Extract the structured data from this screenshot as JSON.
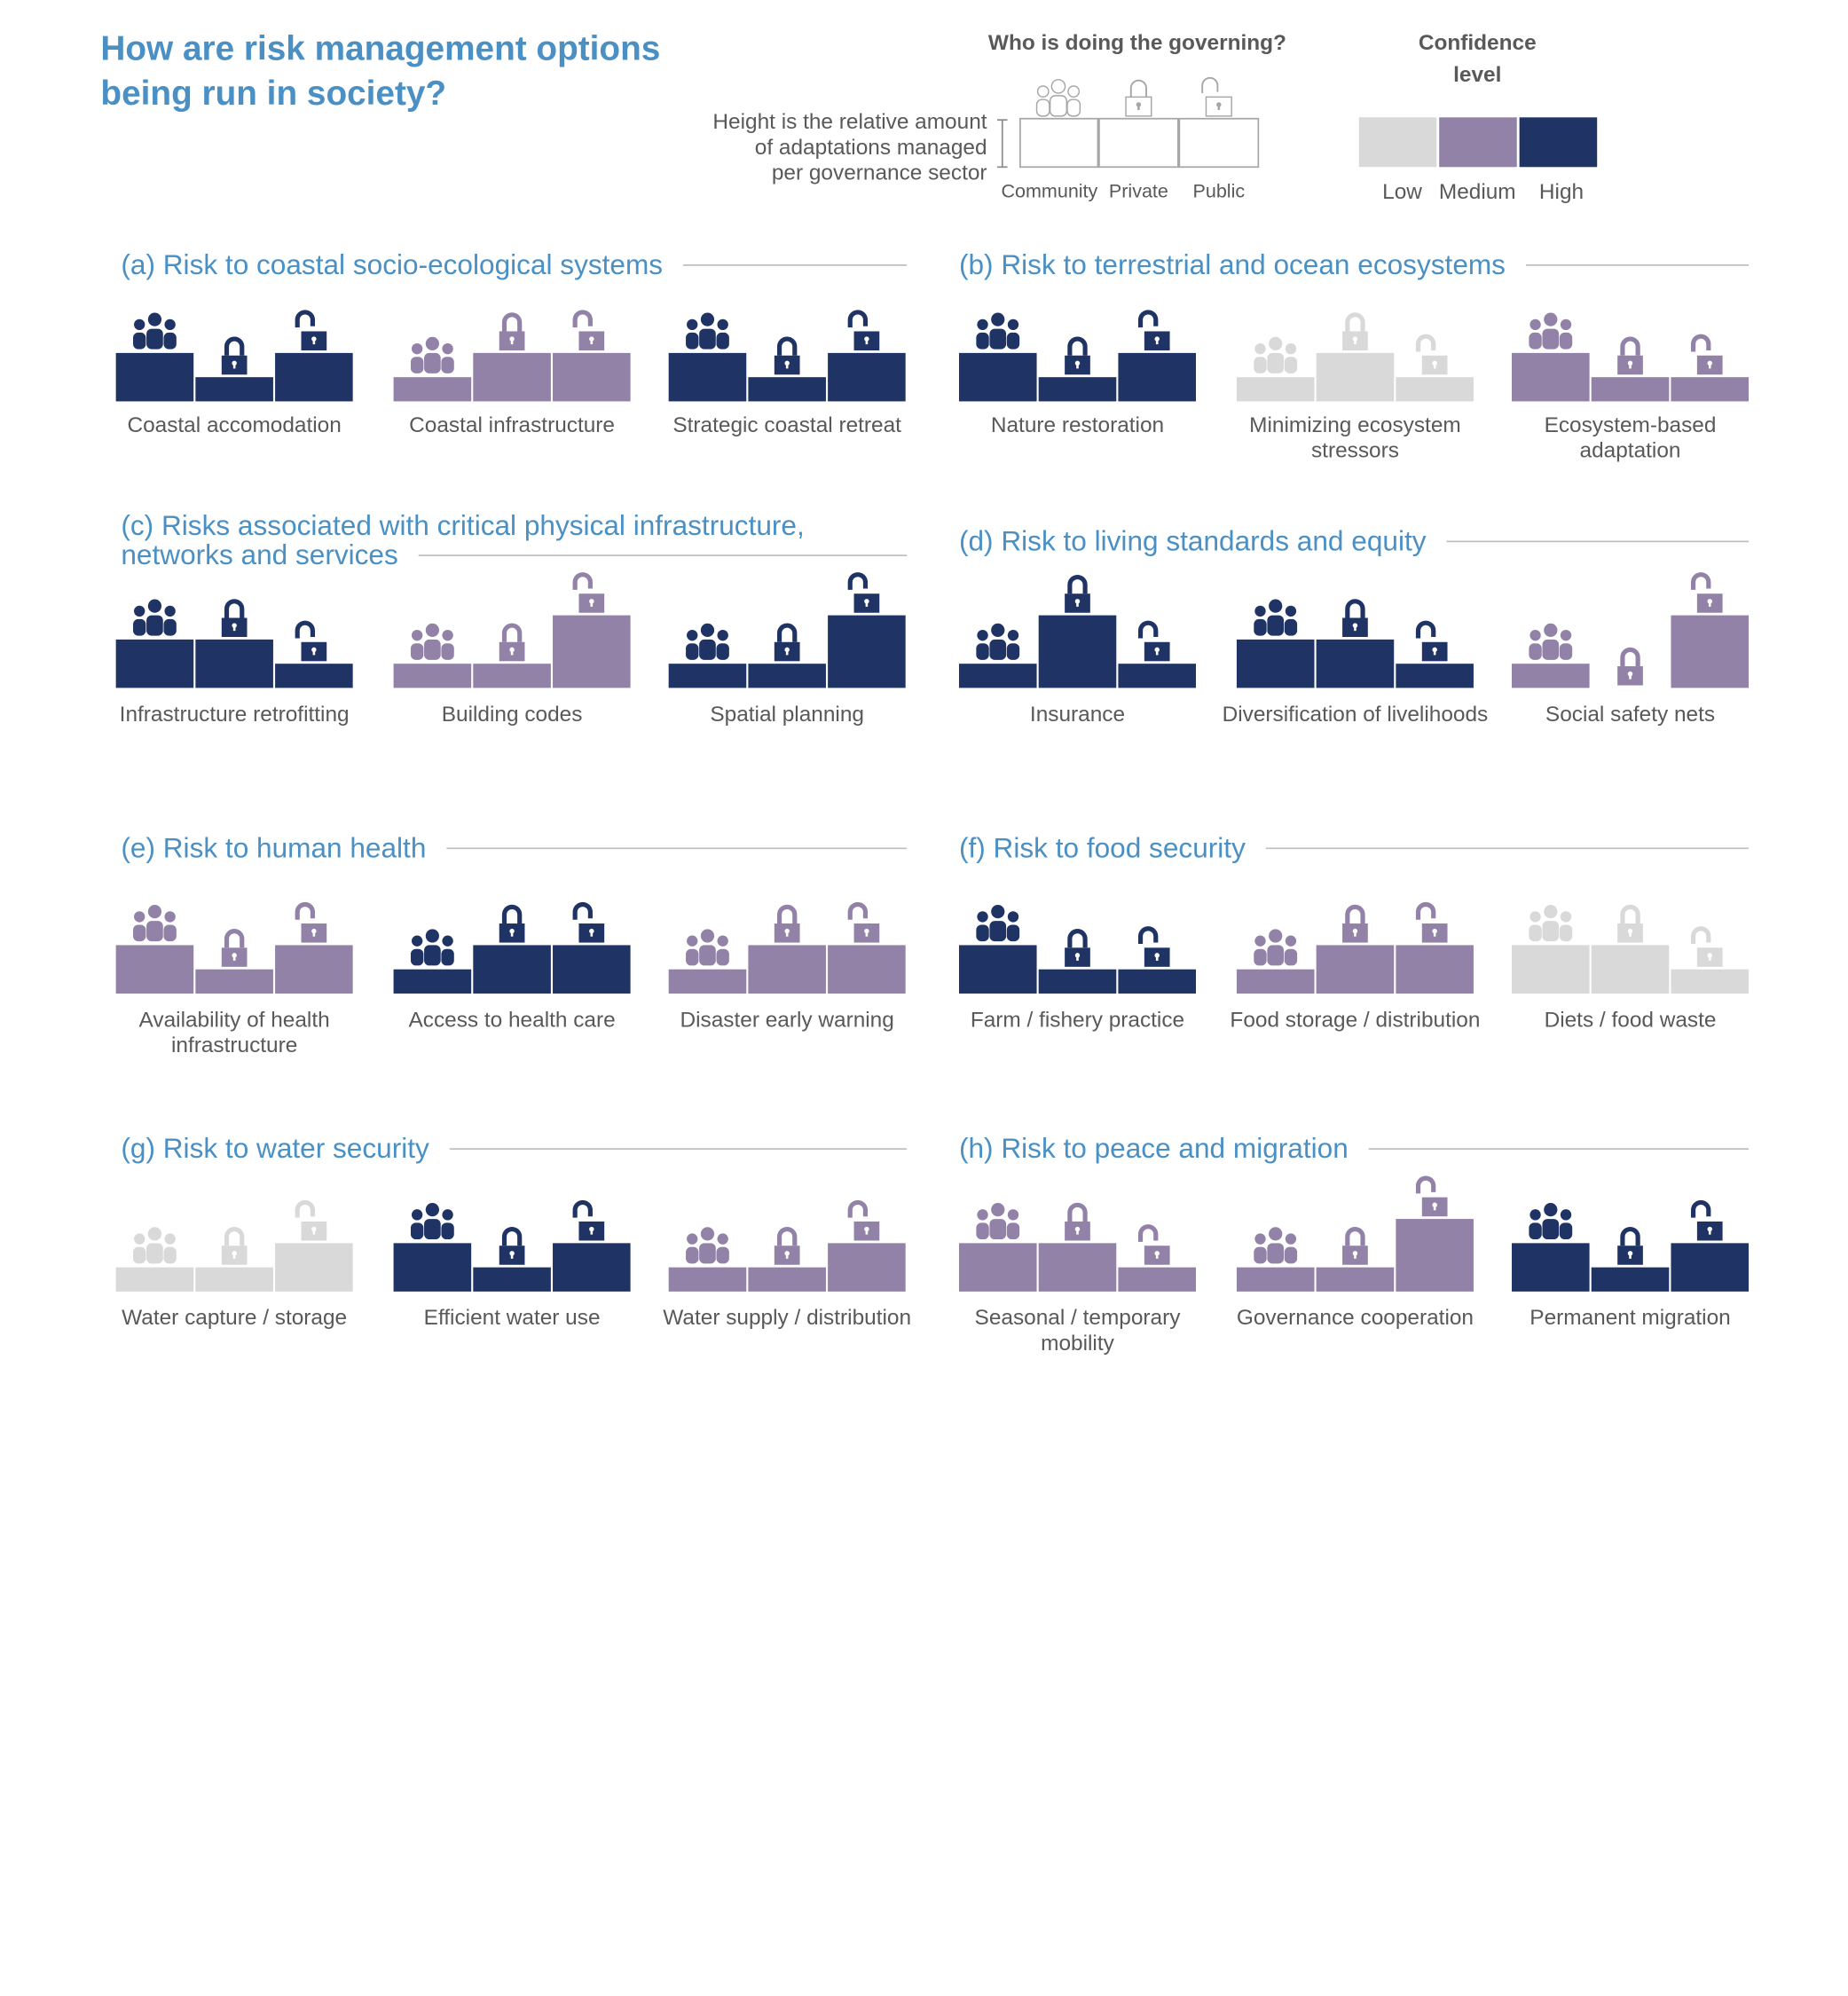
{
  "title": [
    "How are risk management options",
    "being run in society?"
  ],
  "legend": {
    "governing_title": "Who is doing the governing?",
    "height_note": [
      "Height is the relative amount",
      "of adaptations managed",
      "per governance sector"
    ],
    "sectors": [
      "Community",
      "Private",
      "Public"
    ],
    "confidence_title": [
      "Confidence",
      "level"
    ],
    "confidence_levels": [
      "Low",
      "Medium",
      "High"
    ]
  },
  "colors": {
    "low": "#d9d9d9",
    "medium": "#9282a8",
    "high": "#1f3464",
    "heading": "#4a90c4",
    "label": "#595959",
    "rule": "#bfbfbf"
  },
  "icons": [
    "community-icon",
    "private-lock-icon",
    "public-open-lock-icon"
  ],
  "chart_data": {
    "type": "bar",
    "levels": {
      "community": "Community",
      "private": "Private",
      "public": "Public"
    },
    "sections": [
      {
        "heading": [
          "(a) Risk to coastal socio-ecological systems"
        ],
        "options": [
          {
            "label": [
              "Coastal accomodation"
            ],
            "confidence": "high",
            "values": [
              2,
              1,
              2
            ]
          },
          {
            "label": [
              "Coastal infrastructure"
            ],
            "confidence": "medium",
            "values": [
              1,
              2,
              2
            ]
          },
          {
            "label": [
              "Strategic coastal retreat"
            ],
            "confidence": "high",
            "values": [
              2,
              1,
              2
            ]
          }
        ]
      },
      {
        "heading": [
          "(b) Risk to terrestrial and ocean ecosystems"
        ],
        "options": [
          {
            "label": [
              "Nature restoration"
            ],
            "confidence": "high",
            "values": [
              2,
              1,
              2
            ]
          },
          {
            "label": [
              "Minimizing ecosystem",
              "stressors"
            ],
            "confidence": "low",
            "values": [
              1,
              2,
              1
            ]
          },
          {
            "label": [
              "Ecosystem-based",
              "adaptation"
            ],
            "confidence": "medium",
            "values": [
              2,
              1,
              1
            ]
          }
        ]
      },
      {
        "heading": [
          "(c) Risks associated with critical physical infrastructure,",
          "networks and services"
        ],
        "options": [
          {
            "label": [
              "Infrastructure retrofitting"
            ],
            "confidence": "high",
            "values": [
              2,
              2,
              1
            ]
          },
          {
            "label": [
              "Building codes"
            ],
            "confidence": "medium",
            "values": [
              1,
              1,
              3
            ]
          },
          {
            "label": [
              "Spatial planning"
            ],
            "confidence": "high",
            "values": [
              1,
              1,
              3
            ]
          }
        ]
      },
      {
        "heading": [
          "(d) Risk to living standards and  equity"
        ],
        "options": [
          {
            "label": [
              "Insurance"
            ],
            "confidence": "high",
            "values": [
              1,
              3,
              1
            ]
          },
          {
            "label": [
              "Diversification of livelihoods"
            ],
            "confidence": "high",
            "values": [
              2,
              2,
              1
            ]
          },
          {
            "label": [
              "Social safety nets"
            ],
            "confidence": "medium",
            "values": [
              1,
              0,
              3
            ]
          }
        ]
      },
      {
        "heading": [
          "(e) Risk to human health"
        ],
        "options": [
          {
            "label": [
              "Availability of health",
              "infrastructure"
            ],
            "confidence": "medium",
            "values": [
              2,
              1,
              2
            ]
          },
          {
            "label": [
              "Access to health care"
            ],
            "confidence": "high",
            "values": [
              1,
              2,
              2
            ]
          },
          {
            "label": [
              "Disaster early warning"
            ],
            "confidence": "medium",
            "values": [
              1,
              2,
              2
            ]
          }
        ]
      },
      {
        "heading": [
          "(f) Risk to food security"
        ],
        "options": [
          {
            "label": [
              "Farm / fishery practice"
            ],
            "confidence": "high",
            "values": [
              2,
              1,
              1
            ]
          },
          {
            "label": [
              "Food storage / distribution"
            ],
            "confidence": "medium",
            "values": [
              1,
              2,
              2
            ]
          },
          {
            "label": [
              "Diets / food waste"
            ],
            "confidence": "low",
            "values": [
              2,
              2,
              1
            ]
          }
        ]
      },
      {
        "heading": [
          "(g) Risk to water security"
        ],
        "options": [
          {
            "label": [
              "Water capture / storage"
            ],
            "confidence": "low",
            "values": [
              1,
              1,
              2
            ]
          },
          {
            "label": [
              "Efficient water use"
            ],
            "confidence": "high",
            "values": [
              2,
              1,
              2
            ]
          },
          {
            "label": [
              "Water supply / distribution"
            ],
            "confidence": "medium",
            "values": [
              1,
              1,
              2
            ]
          }
        ]
      },
      {
        "heading": [
          "(h) Risk to peace and migration"
        ],
        "options": [
          {
            "label": [
              "Seasonal / temporary",
              "mobility"
            ],
            "confidence": "medium",
            "values": [
              2,
              2,
              1
            ]
          },
          {
            "label": [
              "Governance cooperation"
            ],
            "confidence": "medium",
            "values": [
              1,
              1,
              3
            ]
          },
          {
            "label": [
              "Permanent migration"
            ],
            "confidence": "high",
            "values": [
              2,
              1,
              2
            ]
          }
        ]
      }
    ]
  }
}
